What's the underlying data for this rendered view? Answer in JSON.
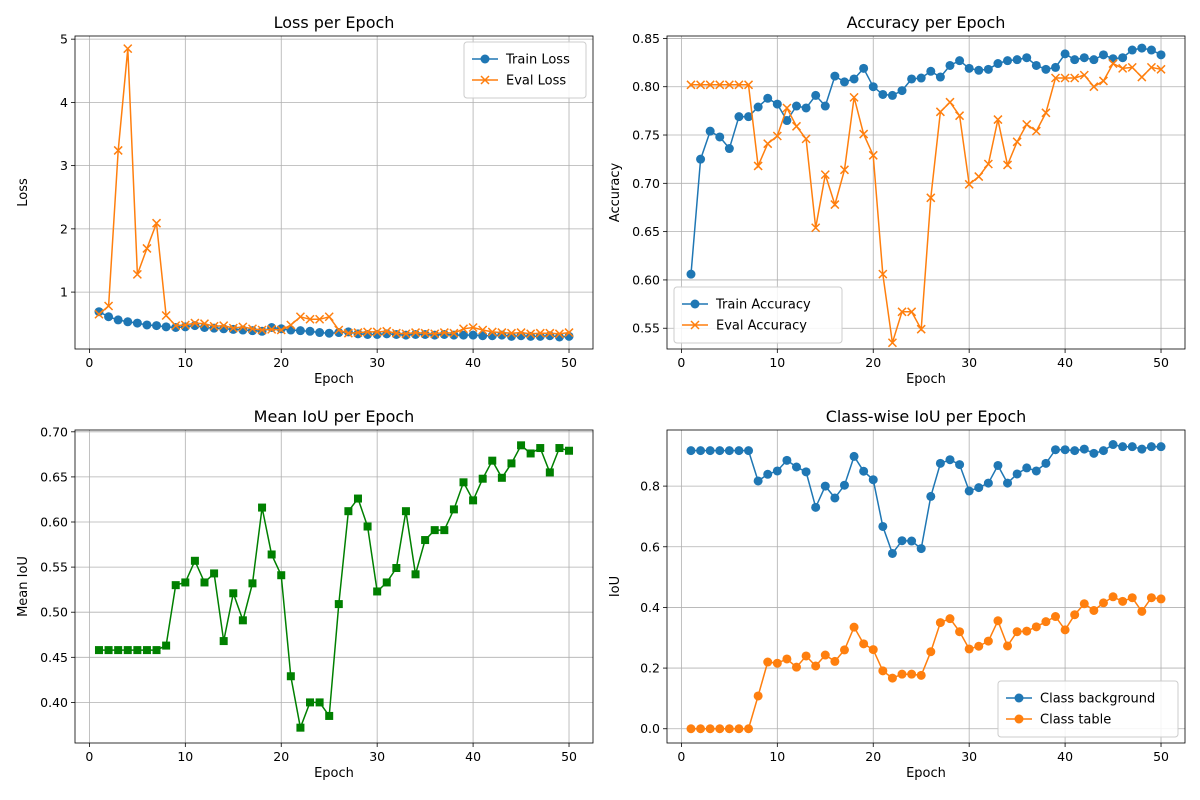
{
  "chart_data": [
    {
      "type": "line",
      "title": "Loss per Epoch",
      "xlabel": "Epoch",
      "ylabel": "Loss",
      "xlim": [
        -1.5,
        52.5
      ],
      "ylim": [
        0.1,
        5.05
      ],
      "xticks": [
        0,
        10,
        20,
        30,
        40,
        50
      ],
      "yticks": [
        1,
        2,
        3,
        4,
        5
      ],
      "grid": true,
      "legend": "top-right",
      "x": [
        1,
        2,
        3,
        4,
        5,
        6,
        7,
        8,
        9,
        10,
        11,
        12,
        13,
        14,
        15,
        16,
        17,
        18,
        19,
        20,
        21,
        22,
        23,
        24,
        25,
        26,
        27,
        28,
        29,
        30,
        31,
        32,
        33,
        34,
        35,
        36,
        37,
        38,
        39,
        40,
        41,
        42,
        43,
        44,
        45,
        46,
        47,
        48,
        49,
        50
      ],
      "series": [
        {
          "name": "Train Loss",
          "color": "#1f77b4",
          "marker": "circle",
          "values": [
            0.69,
            0.61,
            0.56,
            0.53,
            0.51,
            0.48,
            0.47,
            0.45,
            0.44,
            0.45,
            0.47,
            0.44,
            0.43,
            0.42,
            0.41,
            0.4,
            0.39,
            0.38,
            0.44,
            0.42,
            0.4,
            0.39,
            0.38,
            0.36,
            0.35,
            0.36,
            0.37,
            0.34,
            0.33,
            0.33,
            0.34,
            0.33,
            0.32,
            0.33,
            0.33,
            0.32,
            0.33,
            0.32,
            0.32,
            0.32,
            0.31,
            0.31,
            0.32,
            0.3,
            0.31,
            0.3,
            0.3,
            0.31,
            0.29,
            0.3
          ]
        },
        {
          "name": "Eval Loss",
          "color": "#ff7f0e",
          "marker": "x",
          "values": [
            0.65,
            0.78,
            3.24,
            4.85,
            1.28,
            1.69,
            2.09,
            0.63,
            0.47,
            0.48,
            0.51,
            0.5,
            0.46,
            0.47,
            0.43,
            0.45,
            0.42,
            0.4,
            0.41,
            0.4,
            0.48,
            0.61,
            0.57,
            0.57,
            0.61,
            0.4,
            0.35,
            0.36,
            0.37,
            0.37,
            0.38,
            0.35,
            0.34,
            0.36,
            0.35,
            0.34,
            0.36,
            0.35,
            0.42,
            0.44,
            0.4,
            0.37,
            0.36,
            0.35,
            0.36,
            0.34,
            0.35,
            0.35,
            0.34,
            0.36
          ]
        }
      ]
    },
    {
      "type": "line",
      "title": "Accuracy per Epoch",
      "xlabel": "Epoch",
      "ylabel": "Accuracy",
      "xlim": [
        -1.5,
        52.5
      ],
      "ylim": [
        0.5285,
        0.8525
      ],
      "xticks": [
        0,
        10,
        20,
        30,
        40,
        50
      ],
      "yticks": [
        0.55,
        0.6,
        0.65,
        0.7,
        0.75,
        0.8,
        0.85
      ],
      "grid": true,
      "legend": "bottom-left",
      "x": [
        1,
        2,
        3,
        4,
        5,
        6,
        7,
        8,
        9,
        10,
        11,
        12,
        13,
        14,
        15,
        16,
        17,
        18,
        19,
        20,
        21,
        22,
        23,
        24,
        25,
        26,
        27,
        28,
        29,
        30,
        31,
        32,
        33,
        34,
        35,
        36,
        37,
        38,
        39,
        40,
        41,
        42,
        43,
        44,
        45,
        46,
        47,
        48,
        49,
        50
      ],
      "series": [
        {
          "name": "Train Accuracy",
          "color": "#1f77b4",
          "marker": "circle",
          "values": [
            0.606,
            0.725,
            0.754,
            0.748,
            0.736,
            0.769,
            0.769,
            0.779,
            0.788,
            0.782,
            0.765,
            0.78,
            0.778,
            0.791,
            0.78,
            0.811,
            0.805,
            0.808,
            0.819,
            0.8,
            0.792,
            0.791,
            0.796,
            0.808,
            0.809,
            0.816,
            0.81,
            0.822,
            0.827,
            0.819,
            0.817,
            0.818,
            0.824,
            0.827,
            0.828,
            0.83,
            0.822,
            0.818,
            0.82,
            0.834,
            0.828,
            0.83,
            0.828,
            0.833,
            0.829,
            0.83,
            0.838,
            0.84,
            0.838,
            0.833
          ]
        },
        {
          "name": "Eval Accuracy",
          "color": "#ff7f0e",
          "marker": "x",
          "values": [
            0.802,
            0.802,
            0.802,
            0.802,
            0.802,
            0.802,
            0.802,
            0.718,
            0.741,
            0.749,
            0.778,
            0.759,
            0.746,
            0.654,
            0.709,
            0.678,
            0.714,
            0.789,
            0.751,
            0.729,
            0.606,
            0.535,
            0.567,
            0.567,
            0.549,
            0.685,
            0.774,
            0.784,
            0.77,
            0.699,
            0.707,
            0.72,
            0.766,
            0.719,
            0.743,
            0.761,
            0.754,
            0.773,
            0.809,
            0.809,
            0.809,
            0.812,
            0.8,
            0.806,
            0.824,
            0.819,
            0.82,
            0.81,
            0.82,
            0.818
          ]
        }
      ]
    },
    {
      "type": "line",
      "title": "Mean IoU per Epoch",
      "xlabel": "Epoch",
      "ylabel": "Mean IoU",
      "xlim": [
        -1.5,
        52.5
      ],
      "ylim": [
        0.355,
        0.702
      ],
      "xticks": [
        0,
        10,
        20,
        30,
        40,
        50
      ],
      "yticks": [
        0.4,
        0.45,
        0.5,
        0.55,
        0.6,
        0.65,
        0.7
      ],
      "grid": true,
      "legend": "none",
      "x": [
        1,
        2,
        3,
        4,
        5,
        6,
        7,
        8,
        9,
        10,
        11,
        12,
        13,
        14,
        15,
        16,
        17,
        18,
        19,
        20,
        21,
        22,
        23,
        24,
        25,
        26,
        27,
        28,
        29,
        30,
        31,
        32,
        33,
        34,
        35,
        36,
        37,
        38,
        39,
        40,
        41,
        42,
        43,
        44,
        45,
        46,
        47,
        48,
        49,
        50
      ],
      "series": [
        {
          "color": "#008000",
          "marker": "square",
          "values": [
            0.458,
            0.458,
            0.458,
            0.458,
            0.458,
            0.458,
            0.458,
            0.463,
            0.53,
            0.533,
            0.557,
            0.533,
            0.543,
            0.468,
            0.521,
            0.491,
            0.532,
            0.616,
            0.564,
            0.541,
            0.429,
            0.372,
            0.4,
            0.4,
            0.385,
            0.509,
            0.612,
            0.626,
            0.595,
            0.523,
            0.533,
            0.549,
            0.612,
            0.542,
            0.58,
            0.591,
            0.591,
            0.614,
            0.644,
            0.624,
            0.648,
            0.668,
            0.649,
            0.665,
            0.685,
            0.676,
            0.682,
            0.655,
            0.682,
            0.679
          ]
        }
      ]
    },
    {
      "type": "line",
      "title": "Class-wise IoU per Epoch",
      "xlabel": "Epoch",
      "ylabel": "IoU",
      "xlim": [
        -1.5,
        52.5
      ],
      "ylim": [
        -0.047,
        0.985
      ],
      "xticks": [
        0,
        10,
        20,
        30,
        40,
        50
      ],
      "yticks": [
        0.0,
        0.2,
        0.4,
        0.6,
        0.8
      ],
      "grid": true,
      "legend": "bottom-right",
      "x": [
        1,
        2,
        3,
        4,
        5,
        6,
        7,
        8,
        9,
        10,
        11,
        12,
        13,
        14,
        15,
        16,
        17,
        18,
        19,
        20,
        21,
        22,
        23,
        24,
        25,
        26,
        27,
        28,
        29,
        30,
        31,
        32,
        33,
        34,
        35,
        36,
        37,
        38,
        39,
        40,
        41,
        42,
        43,
        44,
        45,
        46,
        47,
        48,
        49,
        50
      ],
      "series": [
        {
          "name": "Class background",
          "color": "#1f77b4",
          "marker": "circle",
          "values": [
            0.917,
            0.917,
            0.917,
            0.917,
            0.917,
            0.917,
            0.917,
            0.817,
            0.839,
            0.85,
            0.885,
            0.863,
            0.847,
            0.73,
            0.8,
            0.761,
            0.803,
            0.898,
            0.849,
            0.821,
            0.667,
            0.578,
            0.62,
            0.619,
            0.594,
            0.766,
            0.875,
            0.887,
            0.871,
            0.784,
            0.795,
            0.81,
            0.868,
            0.81,
            0.84,
            0.86,
            0.85,
            0.875,
            0.92,
            0.92,
            0.917,
            0.922,
            0.908,
            0.917,
            0.937,
            0.93,
            0.93,
            0.922,
            0.93,
            0.93
          ]
        },
        {
          "name": "Class table",
          "color": "#ff7f0e",
          "marker": "circle",
          "values": [
            0.0,
            0.0,
            0.0,
            0.0,
            0.0,
            0.0,
            0.0,
            0.108,
            0.22,
            0.216,
            0.23,
            0.203,
            0.24,
            0.207,
            0.243,
            0.222,
            0.26,
            0.335,
            0.28,
            0.261,
            0.191,
            0.167,
            0.18,
            0.18,
            0.176,
            0.254,
            0.35,
            0.363,
            0.32,
            0.263,
            0.272,
            0.289,
            0.356,
            0.273,
            0.32,
            0.322,
            0.336,
            0.353,
            0.37,
            0.326,
            0.376,
            0.412,
            0.39,
            0.415,
            0.435,
            0.42,
            0.432,
            0.387,
            0.432,
            0.428
          ]
        }
      ]
    }
  ]
}
